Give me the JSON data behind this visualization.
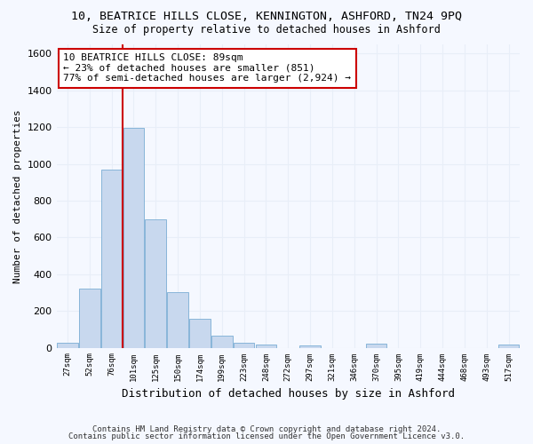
{
  "title1": "10, BEATRICE HILLS CLOSE, KENNINGTON, ASHFORD, TN24 9PQ",
  "title2": "Size of property relative to detached houses in Ashford",
  "xlabel": "Distribution of detached houses by size in Ashford",
  "ylabel": "Number of detached properties",
  "categories": [
    "27sqm",
    "52sqm",
    "76sqm",
    "101sqm",
    "125sqm",
    "150sqm",
    "174sqm",
    "199sqm",
    "223sqm",
    "248sqm",
    "272sqm",
    "297sqm",
    "321sqm",
    "346sqm",
    "370sqm",
    "395sqm",
    "419sqm",
    "444sqm",
    "468sqm",
    "493sqm",
    "517sqm"
  ],
  "values": [
    25,
    320,
    970,
    1195,
    700,
    300,
    155,
    65,
    28,
    15,
    0,
    14,
    0,
    0,
    20,
    0,
    0,
    0,
    0,
    0,
    18
  ],
  "bar_color": "#c8d8ee",
  "bar_edge_color": "#7aadd4",
  "vline_color": "#cc0000",
  "annotation_text": "10 BEATRICE HILLS CLOSE: 89sqm\n← 23% of detached houses are smaller (851)\n77% of semi-detached houses are larger (2,924) →",
  "annotation_box_color": "#ffffff",
  "annotation_box_edge": "#cc0000",
  "footer1": "Contains HM Land Registry data © Crown copyright and database right 2024.",
  "footer2": "Contains public sector information licensed under the Open Government Licence v3.0.",
  "background_color": "#f5f8ff",
  "grid_color": "#e8eef8",
  "ylim": [
    0,
    1650
  ],
  "yticks": [
    0,
    200,
    400,
    600,
    800,
    1000,
    1200,
    1400,
    1600
  ]
}
